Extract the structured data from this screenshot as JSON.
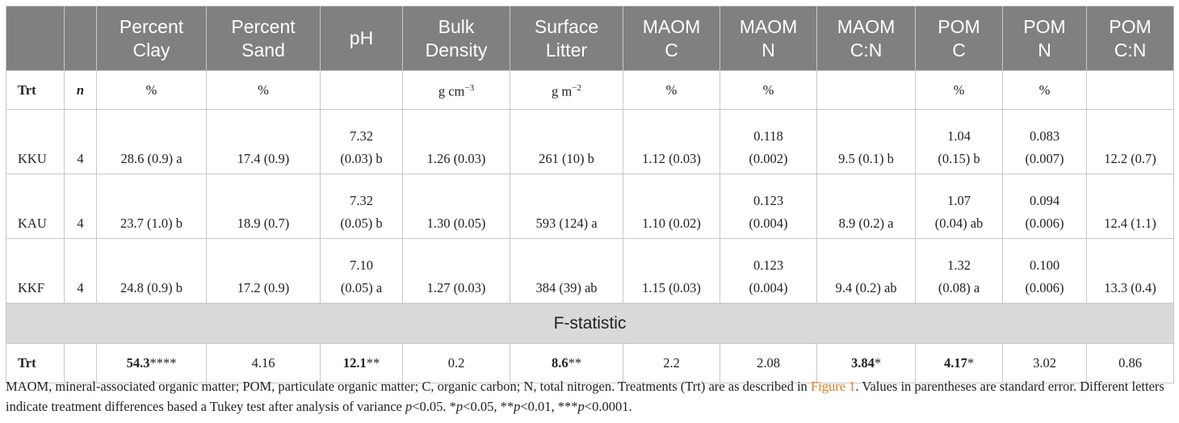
{
  "headers": [
    {
      "l1": "",
      "l2": ""
    },
    {
      "l1": "",
      "l2": ""
    },
    {
      "l1": "Percent",
      "l2": "Clay"
    },
    {
      "l1": "Percent",
      "l2": "Sand"
    },
    {
      "l1": "",
      "l2": "pH"
    },
    {
      "l1": "Bulk",
      "l2": "Density"
    },
    {
      "l1": "Surface",
      "l2": "Litter"
    },
    {
      "l1": "MAOM",
      "l2": "C"
    },
    {
      "l1": "MAOM",
      "l2": "N"
    },
    {
      "l1": "MAOM",
      "l2": "C:N"
    },
    {
      "l1": "POM",
      "l2": "C"
    },
    {
      "l1": "POM",
      "l2": "N"
    },
    {
      "l1": "POM",
      "l2": "C:N"
    }
  ],
  "units": {
    "trt": "Trt",
    "n": "n",
    "cells": [
      "%",
      "%",
      "",
      "g cm",
      "g m",
      "%",
      "%",
      "",
      "%",
      "%",
      ""
    ],
    "bulk_exp": "−3",
    "litter_exp": "−2"
  },
  "rows": [
    {
      "trt": "KKU",
      "n": "4",
      "cells": [
        {
          "l1": "",
          "l2": "28.6 (0.9) a"
        },
        {
          "l1": "",
          "l2": "17.4 (0.9)"
        },
        {
          "l1": "7.32",
          "l2": "(0.03) b"
        },
        {
          "l1": "",
          "l2": "1.26 (0.03)"
        },
        {
          "l1": "",
          "l2": "261 (10) b"
        },
        {
          "l1": "",
          "l2": "1.12 (0.03)"
        },
        {
          "l1": "0.118",
          "l2": "(0.002)"
        },
        {
          "l1": "",
          "l2": "9.5 (0.1) b"
        },
        {
          "l1": "1.04",
          "l2": "(0.15) b"
        },
        {
          "l1": "0.083",
          "l2": "(0.007)"
        },
        {
          "l1": "",
          "l2": "12.2 (0.7)"
        }
      ]
    },
    {
      "trt": "KAU",
      "n": "4",
      "cells": [
        {
          "l1": "",
          "l2": "23.7 (1.0) b"
        },
        {
          "l1": "",
          "l2": "18.9 (0.7)"
        },
        {
          "l1": "7.32",
          "l2": "(0.05) b"
        },
        {
          "l1": "",
          "l2": "1.30 (0.05)"
        },
        {
          "l1": "",
          "l2": "593 (124) a"
        },
        {
          "l1": "",
          "l2": "1.10 (0.02)"
        },
        {
          "l1": "0.123",
          "l2": "(0.004)"
        },
        {
          "l1": "",
          "l2": "8.9 (0.2) a"
        },
        {
          "l1": "1.07",
          "l2": "(0.04) ab"
        },
        {
          "l1": "0.094",
          "l2": "(0.006)"
        },
        {
          "l1": "",
          "l2": "12.4 (1.1)"
        }
      ]
    },
    {
      "trt": "KKF",
      "n": "4",
      "cells": [
        {
          "l1": "",
          "l2": "24.8 (0.9) b"
        },
        {
          "l1": "",
          "l2": "17.2 (0.9)"
        },
        {
          "l1": "7.10",
          "l2": "(0.05) a"
        },
        {
          "l1": "",
          "l2": "1.27 (0.03)"
        },
        {
          "l1": "",
          "l2": "384 (39) ab"
        },
        {
          "l1": "",
          "l2": "1.15 (0.03)"
        },
        {
          "l1": "0.123",
          "l2": "(0.004)"
        },
        {
          "l1": "",
          "l2": "9.4 (0.2) ab"
        },
        {
          "l1": "1.32",
          "l2": "(0.08) a"
        },
        {
          "l1": "0.100",
          "l2": "(0.006)"
        },
        {
          "l1": "",
          "l2": "13.3 (0.4)"
        }
      ]
    }
  ],
  "fstat_label": "F-statistic",
  "frow": {
    "trt": "Trt",
    "n": "",
    "cells": [
      {
        "v": "54.3",
        "s": "****",
        "bold": true
      },
      {
        "v": "4.16",
        "s": "",
        "bold": false
      },
      {
        "v": "12.1",
        "s": "**",
        "bold": true
      },
      {
        "v": "0.2",
        "s": "",
        "bold": false
      },
      {
        "v": "8.6",
        "s": "**",
        "bold": true
      },
      {
        "v": "2.2",
        "s": "",
        "bold": false
      },
      {
        "v": "2.08",
        "s": "",
        "bold": false
      },
      {
        "v": "3.84",
        "s": "*",
        "bold": true
      },
      {
        "v": "4.17",
        "s": "*",
        "bold": true
      },
      {
        "v": "3.02",
        "s": "",
        "bold": false
      },
      {
        "v": "0.86",
        "s": "",
        "bold": false
      }
    ]
  },
  "footnote": {
    "part1": "MAOM, mineral-associated organic matter; POM, particulate organic matter; C, organic carbon; N, total nitrogen. Treatments (Trt) are as described in ",
    "link": "Figure 1",
    "part2": ". Values in parentheses are standard error. Different letters indicate treatment differences based a Tukey test after analysis of variance ",
    "p": "p",
    "part3": "<0.05. *",
    "p2": "p",
    "part4": "<0.05, **",
    "p3": "p",
    "part5": "<0.01, ***",
    "p4": "p",
    "part6": "<0.0001."
  }
}
